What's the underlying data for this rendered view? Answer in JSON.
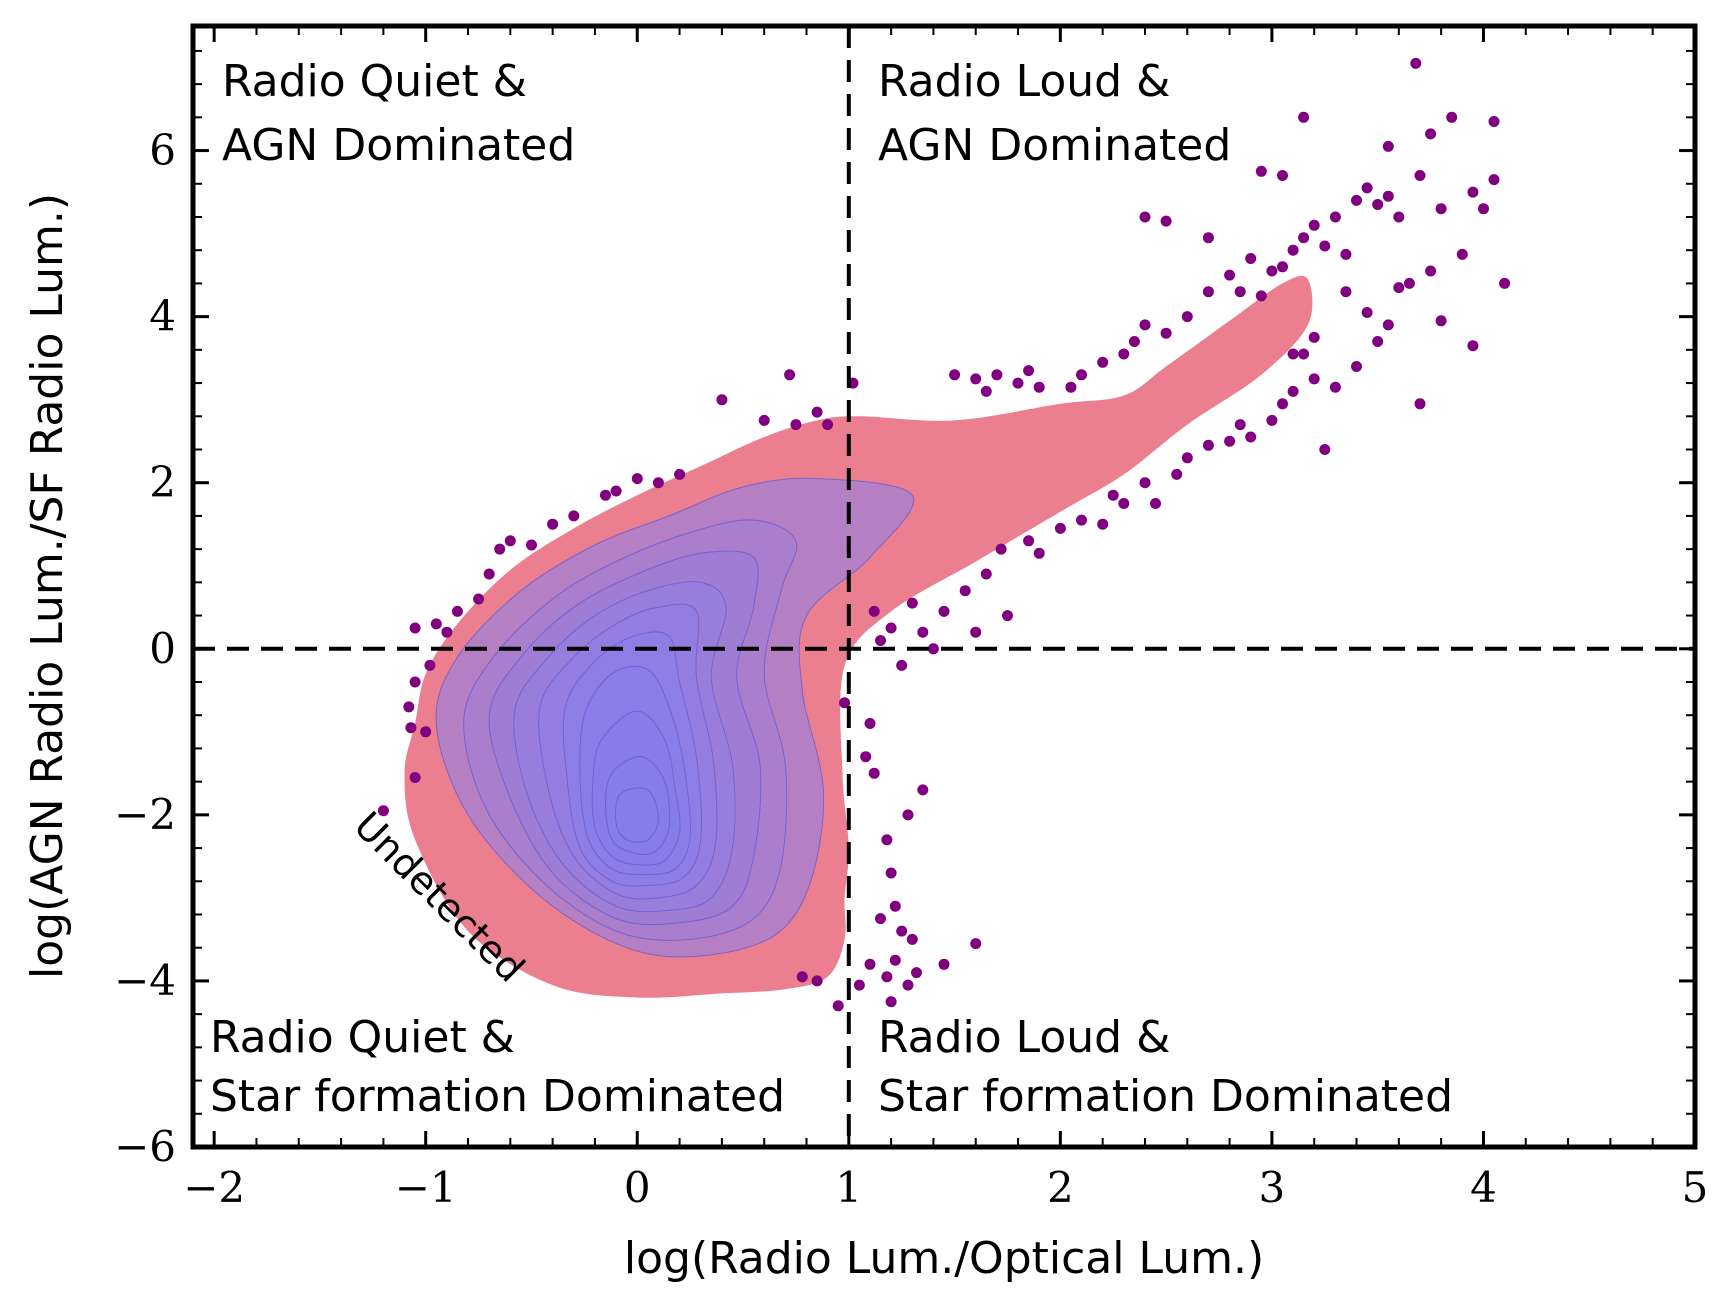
{
  "chart_data": {
    "type": "scatter",
    "xlabel": "log(Radio Lum./Optical Lum.)",
    "ylabel": "log(AGN Radio Lum./SF Radio Lum.)",
    "xlim": [
      -2.1,
      5.0
    ],
    "ylim": [
      -6.0,
      7.5
    ],
    "xticks": [
      -2,
      -1,
      0,
      1,
      2,
      3,
      4,
      5
    ],
    "yticks": [
      -6,
      -4,
      -2,
      0,
      2,
      4,
      6
    ],
    "xtick_labels": [
      "−2",
      "−1",
      "0",
      "1",
      "2",
      "3",
      "4",
      "5"
    ],
    "ytick_labels": [
      "−6",
      "−4",
      "−2",
      "0",
      "2",
      "4",
      "6"
    ],
    "grid": false,
    "divider_lines": {
      "x": 1.0,
      "y": 0.0,
      "style": "dashed"
    },
    "quadrant_labels": [
      {
        "key": "tl",
        "lines": [
          "Radio Quiet &",
          "AGN Dominated"
        ]
      },
      {
        "key": "tr",
        "lines": [
          "Radio Loud &",
          "AGN Dominated"
        ]
      },
      {
        "key": "bl",
        "lines": [
          "Radio Quiet &",
          "Star formation Dominated"
        ]
      },
      {
        "key": "br",
        "lines": [
          "Radio Loud &",
          "Star formation Dominated"
        ]
      }
    ],
    "annotation": "Undetected",
    "colors": {
      "points": "#800080",
      "outer_density": "#eb7f90",
      "inner_density": "#7f7ff5",
      "contour_lines": "#6a5acd"
    },
    "density_outline": [
      [
        -1.05,
        -0.9
      ],
      [
        -1.0,
        -0.3
      ],
      [
        -0.85,
        0.3
      ],
      [
        -0.6,
        0.95
      ],
      [
        -0.3,
        1.45
      ],
      [
        0.0,
        1.85
      ],
      [
        0.3,
        2.2
      ],
      [
        0.6,
        2.55
      ],
      [
        0.85,
        2.75
      ],
      [
        1.05,
        2.8
      ],
      [
        1.5,
        2.75
      ],
      [
        2.0,
        2.95
      ],
      [
        2.3,
        3.05
      ],
      [
        2.5,
        3.4
      ],
      [
        2.8,
        3.95
      ],
      [
        3.05,
        4.4
      ],
      [
        3.17,
        4.45
      ],
      [
        3.17,
        3.9
      ],
      [
        2.95,
        3.3
      ],
      [
        2.6,
        2.7
      ],
      [
        2.3,
        2.1
      ],
      [
        2.0,
        1.65
      ],
      [
        1.6,
        1.05
      ],
      [
        1.2,
        0.45
      ],
      [
        0.98,
        -0.2
      ],
      [
        0.97,
        -1.5
      ],
      [
        1.0,
        -2.4
      ],
      [
        0.98,
        -3.0
      ],
      [
        0.98,
        -3.5
      ],
      [
        0.9,
        -3.95
      ],
      [
        0.7,
        -4.1
      ],
      [
        0.4,
        -4.15
      ],
      [
        0.0,
        -4.2
      ],
      [
        -0.4,
        -4.05
      ],
      [
        -0.8,
        -3.4
      ],
      [
        -1.05,
        -2.3
      ],
      [
        -1.1,
        -1.5
      ]
    ],
    "density_contours": [
      [
        [
          -0.95,
          -0.9
        ],
        [
          -0.85,
          -0.1
        ],
        [
          -0.55,
          0.7
        ],
        [
          -0.2,
          1.25
        ],
        [
          0.15,
          1.6
        ],
        [
          0.5,
          1.95
        ],
        [
          0.85,
          2.05
        ],
        [
          1.3,
          1.85
        ],
        [
          1.1,
          1.1
        ],
        [
          0.8,
          0.4
        ],
        [
          0.78,
          -0.5
        ],
        [
          0.88,
          -1.7
        ],
        [
          0.82,
          -2.8
        ],
        [
          0.65,
          -3.45
        ],
        [
          0.3,
          -3.7
        ],
        [
          -0.05,
          -3.6
        ],
        [
          -0.45,
          -3.0
        ],
        [
          -0.8,
          -2.0
        ]
      ],
      [
        [
          -0.82,
          -0.85
        ],
        [
          -0.68,
          -0.1
        ],
        [
          -0.4,
          0.6
        ],
        [
          -0.1,
          1.05
        ],
        [
          0.25,
          1.4
        ],
        [
          0.55,
          1.55
        ],
        [
          0.75,
          1.3
        ],
        [
          0.68,
          0.7
        ],
        [
          0.6,
          -0.3
        ],
        [
          0.7,
          -1.4
        ],
        [
          0.68,
          -2.6
        ],
        [
          0.55,
          -3.25
        ],
        [
          0.25,
          -3.5
        ],
        [
          -0.1,
          -3.4
        ],
        [
          -0.45,
          -2.8
        ],
        [
          -0.72,
          -1.9
        ]
      ],
      [
        [
          -0.7,
          -0.8
        ],
        [
          -0.55,
          -0.1
        ],
        [
          -0.3,
          0.5
        ],
        [
          0.0,
          0.9
        ],
        [
          0.3,
          1.15
        ],
        [
          0.55,
          1.1
        ],
        [
          0.55,
          0.5
        ],
        [
          0.47,
          -0.35
        ],
        [
          0.58,
          -1.4
        ],
        [
          0.55,
          -2.5
        ],
        [
          0.45,
          -3.1
        ],
        [
          0.2,
          -3.3
        ],
        [
          -0.1,
          -3.25
        ],
        [
          -0.4,
          -2.7
        ],
        [
          -0.6,
          -1.8
        ]
      ],
      [
        [
          -0.58,
          -0.75
        ],
        [
          -0.42,
          -0.1
        ],
        [
          -0.2,
          0.4
        ],
        [
          0.05,
          0.7
        ],
        [
          0.3,
          0.8
        ],
        [
          0.42,
          0.5
        ],
        [
          0.35,
          -0.35
        ],
        [
          0.45,
          -1.4
        ],
        [
          0.45,
          -2.4
        ],
        [
          0.35,
          -3.0
        ],
        [
          0.15,
          -3.15
        ],
        [
          -0.1,
          -3.1
        ],
        [
          -0.35,
          -2.6
        ],
        [
          -0.52,
          -1.75
        ]
      ],
      [
        [
          -0.46,
          -0.7
        ],
        [
          -0.3,
          -0.1
        ],
        [
          -0.1,
          0.3
        ],
        [
          0.1,
          0.5
        ],
        [
          0.28,
          0.45
        ],
        [
          0.28,
          -0.35
        ],
        [
          0.36,
          -1.35
        ],
        [
          0.37,
          -2.35
        ],
        [
          0.28,
          -2.85
        ],
        [
          0.1,
          -3.0
        ],
        [
          -0.1,
          -2.95
        ],
        [
          -0.3,
          -2.5
        ],
        [
          -0.42,
          -1.7
        ]
      ],
      [
        [
          -0.34,
          -0.7
        ],
        [
          -0.2,
          -0.15
        ],
        [
          -0.02,
          0.15
        ],
        [
          0.15,
          0.15
        ],
        [
          0.2,
          -0.4
        ],
        [
          0.28,
          -1.3
        ],
        [
          0.3,
          -2.3
        ],
        [
          0.22,
          -2.75
        ],
        [
          0.05,
          -2.85
        ],
        [
          -0.12,
          -2.8
        ],
        [
          -0.27,
          -2.4
        ],
        [
          -0.33,
          -1.6
        ]
      ],
      [
        [
          -0.25,
          -0.8
        ],
        [
          -0.12,
          -0.3
        ],
        [
          0.05,
          -0.25
        ],
        [
          0.15,
          -0.7
        ],
        [
          0.22,
          -1.4
        ],
        [
          0.25,
          -2.25
        ],
        [
          0.18,
          -2.65
        ],
        [
          0.02,
          -2.72
        ],
        [
          -0.12,
          -2.65
        ],
        [
          -0.23,
          -2.3
        ],
        [
          -0.27,
          -1.6
        ]
      ],
      [
        [
          -0.17,
          -1.1
        ],
        [
          0.0,
          -0.75
        ],
        [
          0.13,
          -1.1
        ],
        [
          0.18,
          -1.7
        ],
        [
          0.2,
          -2.2
        ],
        [
          0.13,
          -2.55
        ],
        [
          0.0,
          -2.6
        ],
        [
          -0.12,
          -2.5
        ],
        [
          -0.2,
          -2.15
        ],
        [
          -0.21,
          -1.6
        ]
      ],
      [
        [
          -0.12,
          -1.5
        ],
        [
          0.02,
          -1.3
        ],
        [
          0.13,
          -1.6
        ],
        [
          0.15,
          -2.15
        ],
        [
          0.08,
          -2.45
        ],
        [
          -0.03,
          -2.45
        ],
        [
          -0.12,
          -2.3
        ],
        [
          -0.15,
          -1.9
        ]
      ],
      [
        [
          -0.08,
          -1.75
        ],
        [
          0.05,
          -1.7
        ],
        [
          0.1,
          -2.05
        ],
        [
          0.05,
          -2.3
        ],
        [
          -0.05,
          -2.3
        ],
        [
          -0.1,
          -2.1
        ]
      ]
    ],
    "points": [
      [
        -1.05,
        0.25
      ],
      [
        -1.0,
        -1.0
      ],
      [
        -1.07,
        -0.95
      ],
      [
        -1.08,
        -0.7
      ],
      [
        -1.05,
        -0.4
      ],
      [
        -0.98,
        -0.2
      ],
      [
        -0.95,
        0.3
      ],
      [
        -0.9,
        0.2
      ],
      [
        -0.85,
        0.45
      ],
      [
        -0.75,
        0.6
      ],
      [
        -0.7,
        0.9
      ],
      [
        -0.65,
        1.2
      ],
      [
        -0.6,
        1.3
      ],
      [
        -0.5,
        1.25
      ],
      [
        -0.4,
        1.5
      ],
      [
        -0.3,
        1.6
      ],
      [
        -0.15,
        1.85
      ],
      [
        -0.1,
        1.9
      ],
      [
        0.0,
        2.05
      ],
      [
        0.1,
        2.0
      ],
      [
        0.2,
        2.1
      ],
      [
        0.4,
        3.0
      ],
      [
        0.6,
        2.75
      ],
      [
        0.75,
        2.7
      ],
      [
        0.85,
        2.85
      ],
      [
        0.9,
        2.7
      ],
      [
        0.72,
        3.3
      ],
      [
        1.02,
        3.2
      ],
      [
        -1.05,
        -1.55
      ],
      [
        -1.2,
        -1.95
      ],
      [
        1.12,
        0.45
      ],
      [
        1.15,
        0.1
      ],
      [
        1.2,
        0.25
      ],
      [
        1.3,
        0.55
      ],
      [
        1.35,
        0.2
      ],
      [
        1.45,
        0.45
      ],
      [
        1.55,
        0.7
      ],
      [
        1.65,
        0.9
      ],
      [
        1.72,
        1.2
      ],
      [
        1.85,
        1.3
      ],
      [
        1.9,
        1.15
      ],
      [
        2.0,
        1.45
      ],
      [
        2.1,
        1.55
      ],
      [
        2.2,
        1.5
      ],
      [
        2.25,
        1.85
      ],
      [
        2.3,
        1.75
      ],
      [
        2.4,
        2.0
      ],
      [
        2.45,
        1.75
      ],
      [
        2.55,
        2.1
      ],
      [
        2.6,
        2.3
      ],
      [
        2.7,
        2.45
      ],
      [
        2.8,
        2.5
      ],
      [
        2.85,
        2.7
      ],
      [
        2.9,
        2.55
      ],
      [
        3.0,
        2.75
      ],
      [
        3.05,
        2.95
      ],
      [
        3.1,
        3.1
      ],
      [
        3.15,
        3.55
      ],
      [
        3.2,
        3.25
      ],
      [
        3.25,
        2.4
      ],
      [
        1.25,
        -0.2
      ],
      [
        1.4,
        0.0
      ],
      [
        1.6,
        0.2
      ],
      [
        1.75,
        0.4
      ],
      [
        1.5,
        3.3
      ],
      [
        1.6,
        3.25
      ],
      [
        1.65,
        3.1
      ],
      [
        1.7,
        3.3
      ],
      [
        1.8,
        3.2
      ],
      [
        1.85,
        3.35
      ],
      [
        1.9,
        3.15
      ],
      [
        2.05,
        3.15
      ],
      [
        2.1,
        3.3
      ],
      [
        2.2,
        3.45
      ],
      [
        2.3,
        3.55
      ],
      [
        2.35,
        3.7
      ],
      [
        2.4,
        3.9
      ],
      [
        2.5,
        3.8
      ],
      [
        2.6,
        4.0
      ],
      [
        2.7,
        4.3
      ],
      [
        2.8,
        4.5
      ],
      [
        2.9,
        4.7
      ],
      [
        2.95,
        4.25
      ],
      [
        3.0,
        4.55
      ],
      [
        3.05,
        4.6
      ],
      [
        3.1,
        4.8
      ],
      [
        3.15,
        4.95
      ],
      [
        3.2,
        5.1
      ],
      [
        3.25,
        4.85
      ],
      [
        3.3,
        5.2
      ],
      [
        3.35,
        4.75
      ],
      [
        3.4,
        5.4
      ],
      [
        3.45,
        5.55
      ],
      [
        3.5,
        5.35
      ],
      [
        3.55,
        5.45
      ],
      [
        3.6,
        5.2
      ],
      [
        3.65,
        4.4
      ],
      [
        3.7,
        5.7
      ],
      [
        3.75,
        4.55
      ],
      [
        3.8,
        5.3
      ],
      [
        3.85,
        6.4
      ],
      [
        3.9,
        4.75
      ],
      [
        3.95,
        5.5
      ],
      [
        4.0,
        5.3
      ],
      [
        4.05,
        6.35
      ],
      [
        4.05,
        5.65
      ],
      [
        4.1,
        4.4
      ],
      [
        3.95,
        3.65
      ],
      [
        3.8,
        3.95
      ],
      [
        3.6,
        4.35
      ],
      [
        3.5,
        3.7
      ],
      [
        3.4,
        3.4
      ],
      [
        3.3,
        3.15
      ],
      [
        3.7,
        2.95
      ],
      [
        3.15,
        6.4
      ],
      [
        3.55,
        6.05
      ],
      [
        3.68,
        7.05
      ],
      [
        3.75,
        6.2
      ],
      [
        2.95,
        5.75
      ],
      [
        3.05,
        5.7
      ],
      [
        2.4,
        5.2
      ],
      [
        2.5,
        5.15
      ],
      [
        2.7,
        4.95
      ],
      [
        2.85,
        4.3
      ],
      [
        3.35,
        4.3
      ],
      [
        3.45,
        4.05
      ],
      [
        3.55,
        3.9
      ],
      [
        3.2,
        3.75
      ],
      [
        3.1,
        3.55
      ],
      [
        1.1,
        -0.9
      ],
      [
        1.08,
        -1.3
      ],
      [
        1.12,
        -1.5
      ],
      [
        1.18,
        -2.3
      ],
      [
        1.2,
        -2.7
      ],
      [
        1.22,
        -3.1
      ],
      [
        1.25,
        -3.4
      ],
      [
        1.3,
        -3.5
      ],
      [
        1.35,
        -1.7
      ],
      [
        1.28,
        -2.0
      ],
      [
        1.15,
        -3.25
      ],
      [
        1.1,
        -3.8
      ],
      [
        1.18,
        -3.95
      ],
      [
        1.2,
        -4.25
      ],
      [
        1.28,
        -4.05
      ],
      [
        1.32,
        -3.9
      ],
      [
        1.22,
        -3.75
      ],
      [
        1.45,
        -3.8
      ],
      [
        1.6,
        -3.55
      ],
      [
        1.05,
        -4.05
      ],
      [
        0.95,
        -4.3
      ],
      [
        0.85,
        -4.0
      ],
      [
        0.78,
        -3.95
      ],
      [
        0.98,
        -0.65
      ]
    ]
  }
}
